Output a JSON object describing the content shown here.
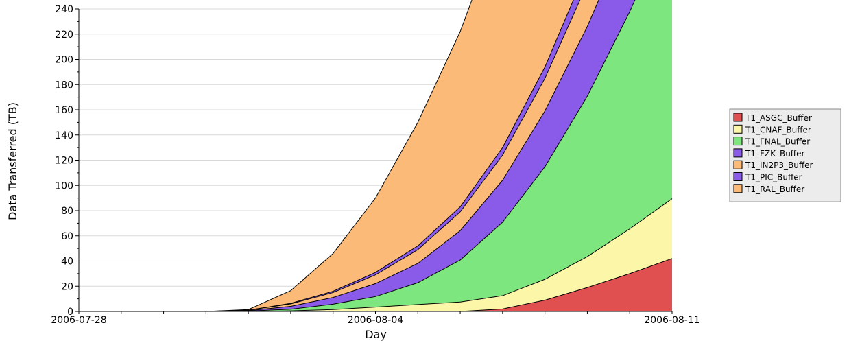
{
  "chart_data": {
    "type": "area",
    "stacked": true,
    "cumulative": true,
    "title": "",
    "xlabel": "Day",
    "ylabel": "Data Transferred (TB)",
    "ylim": [
      0,
      240
    ],
    "yticks": [
      0,
      20,
      40,
      60,
      80,
      100,
      120,
      140,
      160,
      180,
      200,
      220,
      240
    ],
    "xlim": [
      "2006-07-28",
      "2006-08-11"
    ],
    "x": [
      "2006-07-28",
      "2006-07-29",
      "2006-07-30",
      "2006-07-31",
      "2006-08-01",
      "2006-08-02",
      "2006-08-03",
      "2006-08-04",
      "2006-08-05",
      "2006-08-06",
      "2006-08-07",
      "2006-08-08",
      "2006-08-09",
      "2006-08-10",
      "2006-08-11"
    ],
    "xticks": [
      {
        "value": "2006-07-28",
        "label": "2006-07-28"
      },
      {
        "value": "2006-08-04",
        "label": "2006-08-04"
      },
      {
        "value": "2006-08-11",
        "label": "2006-08-11"
      }
    ],
    "grid": true,
    "legend_position": "right",
    "series": [
      {
        "name": "T1_ASGC_Buffer",
        "color": "#e05050",
        "values": [
          0,
          0,
          0,
          0,
          0,
          0,
          0,
          0,
          0,
          0,
          2,
          7,
          10,
          11,
          12
        ]
      },
      {
        "name": "T1_CNAF_Buffer",
        "color": "#fbf6a8",
        "values": [
          0,
          0,
          0,
          0,
          0,
          0.5,
          1,
          2,
          2,
          2,
          3,
          6,
          8,
          11,
          12
        ]
      },
      {
        "name": "T1_FNAL_Buffer",
        "color": "#7ee67e",
        "values": [
          0,
          0,
          0,
          0,
          0.3,
          1,
          3,
          4,
          9,
          16,
          25,
          31,
          38,
          45,
          51
        ]
      },
      {
        "name": "T1_FZK_Buffer",
        "color": "#8a5ae8",
        "values": [
          0,
          0,
          0,
          0,
          0.3,
          2,
          3,
          5,
          5,
          8,
          10,
          11,
          11,
          11,
          11
        ]
      },
      {
        "name": "T1_IN2P3_Buffer",
        "color": "#fbba78",
        "values": [
          0,
          0,
          0,
          0,
          0.4,
          1.5,
          2,
          3,
          4,
          4,
          5,
          6,
          8,
          9,
          10
        ]
      },
      {
        "name": "T1_PIC_Buffer",
        "color": "#8a5ae8",
        "values": [
          0,
          0,
          0,
          0,
          0,
          0.5,
          0.5,
          1,
          1,
          1,
          2,
          3,
          4,
          6,
          7
        ]
      },
      {
        "name": "T1_RAL_Buffer",
        "color": "#fbba78",
        "values": [
          0,
          0,
          0,
          0,
          0.5,
          9.5,
          20,
          29,
          39,
          41,
          44,
          57,
          60,
          60,
          57
        ]
      }
    ]
  }
}
